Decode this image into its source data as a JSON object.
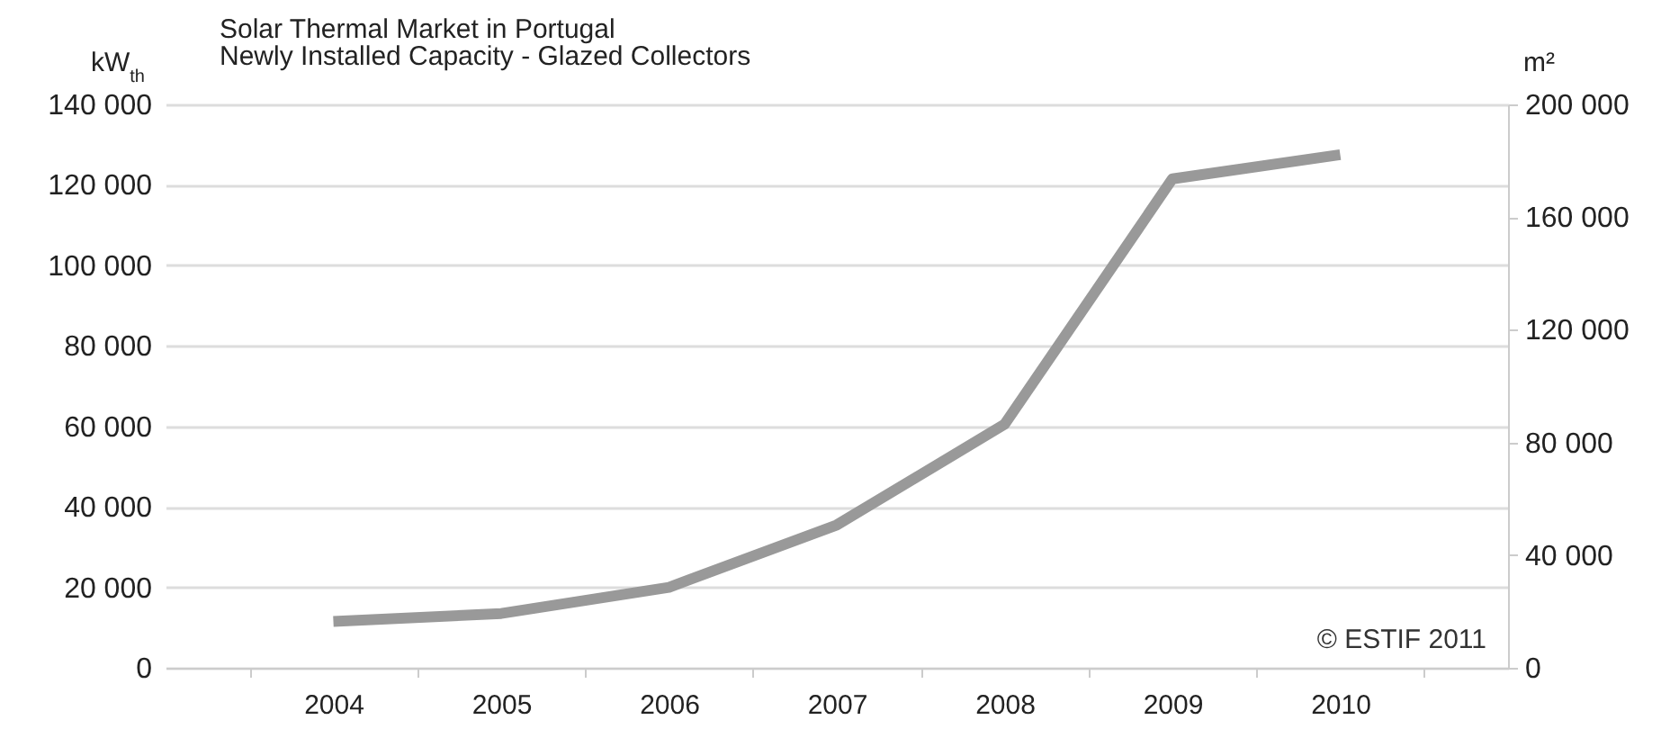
{
  "chart_data": {
    "type": "line",
    "title": "Solar Thermal Market in Portugal",
    "subtitle": "Newly Installed Capacity - Glazed Collectors",
    "ylabel": "kW$_{th}$",
    "y2label": "m²",
    "categories": [
      "2004",
      "2005",
      "2006",
      "2007",
      "2008",
      "2009",
      "2010"
    ],
    "series": [
      {
        "color": "#999999",
        "values": [
          11500,
          13500,
          20000,
          35500,
          60500,
          121500,
          127500
        ]
      }
    ],
    "ylim": [
      0,
      140000
    ],
    "yticks": [
      0,
      20000,
      40000,
      60000,
      80000,
      100000,
      120000,
      140000
    ],
    "y2lim": [
      0,
      200000
    ],
    "y2ticks": [
      0,
      40000,
      80000,
      120000,
      160000,
      200000
    ],
    "grid": "y",
    "marker": "none",
    "line_style": "solid",
    "annotations": [
      "© ESTIF 2011"
    ]
  }
}
